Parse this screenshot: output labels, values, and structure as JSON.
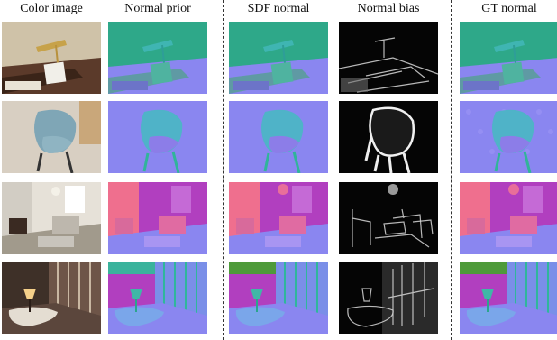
{
  "figure": {
    "column_headers": [
      "Color image",
      "Normal prior",
      "SDF normal",
      "Normal bias",
      "GT normal"
    ],
    "column_kinds": [
      "color",
      "normal",
      "normal",
      "bias",
      "normal"
    ],
    "row_scenes": [
      "piano-room",
      "chair-close",
      "living-room",
      "stair-room"
    ],
    "divider_after_columns": [
      1,
      3
    ],
    "colors": {
      "normal_floor": "#8a86f0",
      "normal_wall_green": "#2ea889",
      "normal_wall_pink": "#ef6f8e",
      "normal_wall_purple": "#b13fbf",
      "bias_background": "#050505",
      "bias_edges": "#d8d8d8",
      "divider": "#333333"
    }
  }
}
